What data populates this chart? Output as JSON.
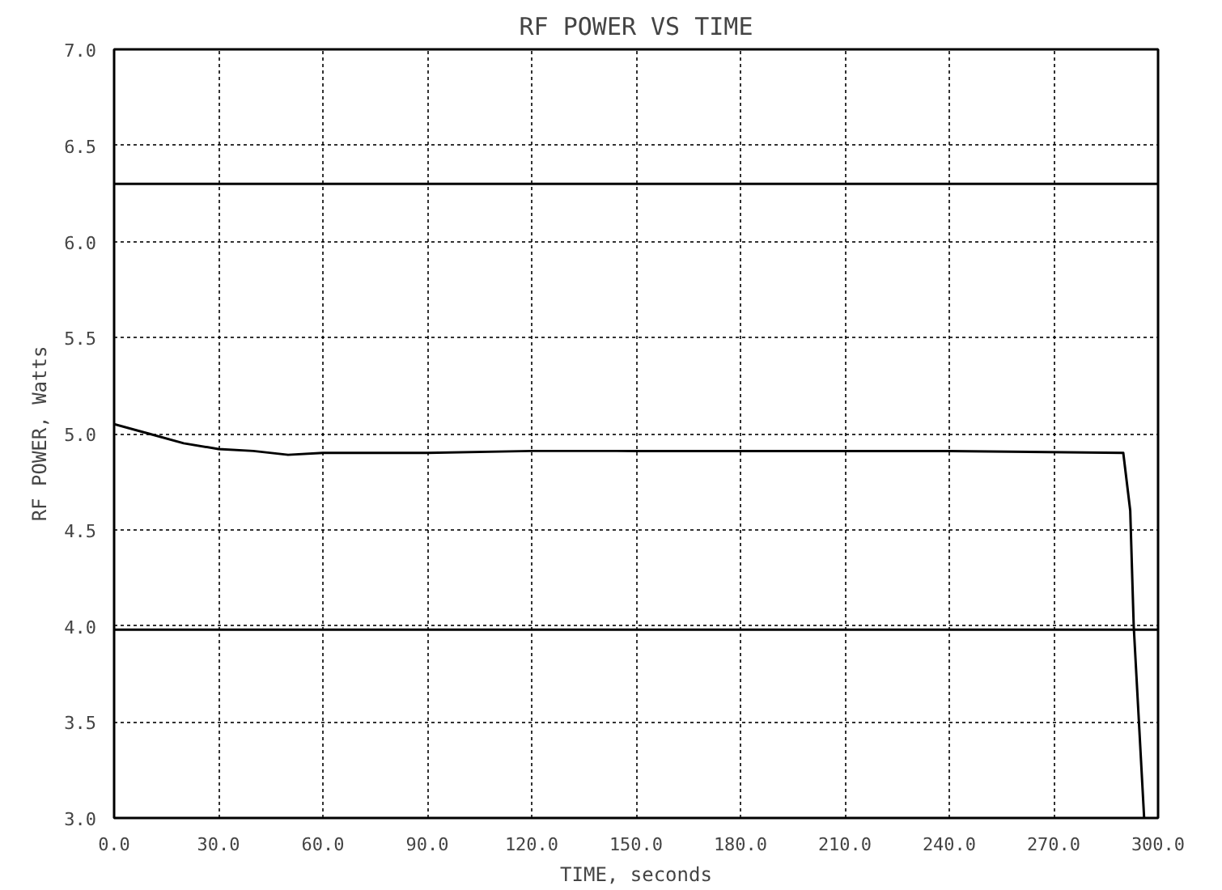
{
  "chart_data": {
    "type": "line",
    "title": "RF POWER VS TIME",
    "xlabel": "TIME, seconds",
    "ylabel": "RF POWER, Watts",
    "x": [
      0,
      10,
      20,
      30,
      40,
      50,
      60,
      90,
      120,
      150,
      240,
      290,
      292,
      293,
      296
    ],
    "series": [
      {
        "color": "#000000",
        "values": [
          5.05,
          5.0,
          4.95,
          4.92,
          4.91,
          4.89,
          4.9,
          4.9,
          4.91,
          4.91,
          4.91,
          4.9,
          4.6,
          4.0,
          3.0
        ]
      }
    ],
    "xlim": [
      0,
      300
    ],
    "ylim": [
      3,
      7
    ],
    "xticks": [
      {
        "value": 0,
        "label": "0.0"
      },
      {
        "value": 30,
        "label": "30.0"
      },
      {
        "value": 60,
        "label": "60.0"
      },
      {
        "value": 90,
        "label": "90.0"
      },
      {
        "value": 120,
        "label": "120.0"
      },
      {
        "value": 150,
        "label": "150.0"
      },
      {
        "value": 180,
        "label": "180.0"
      },
      {
        "value": 210,
        "label": "210.0"
      },
      {
        "value": 240,
        "label": "240.0"
      },
      {
        "value": 270,
        "label": "270.0"
      },
      {
        "value": 300,
        "label": "300.0"
      }
    ],
    "yticks": [
      {
        "value": 3,
        "label": "3.0"
      },
      3.5,
      {
        "value": 4,
        "label": "4.0"
      },
      4.5,
      {
        "value": 5,
        "label": "5.0"
      },
      5.5,
      {
        "value": 6,
        "label": "6.0"
      },
      6.5,
      {
        "value": 7,
        "label": "7.0"
      }
    ],
    "ref_lines": [
      {
        "axis": "y",
        "value": 6.3,
        "color": "#000000"
      },
      {
        "axis": "y",
        "value": 3.98,
        "color": "#000000"
      }
    ],
    "grid": true,
    "line_style": "solid",
    "marker": "none"
  }
}
